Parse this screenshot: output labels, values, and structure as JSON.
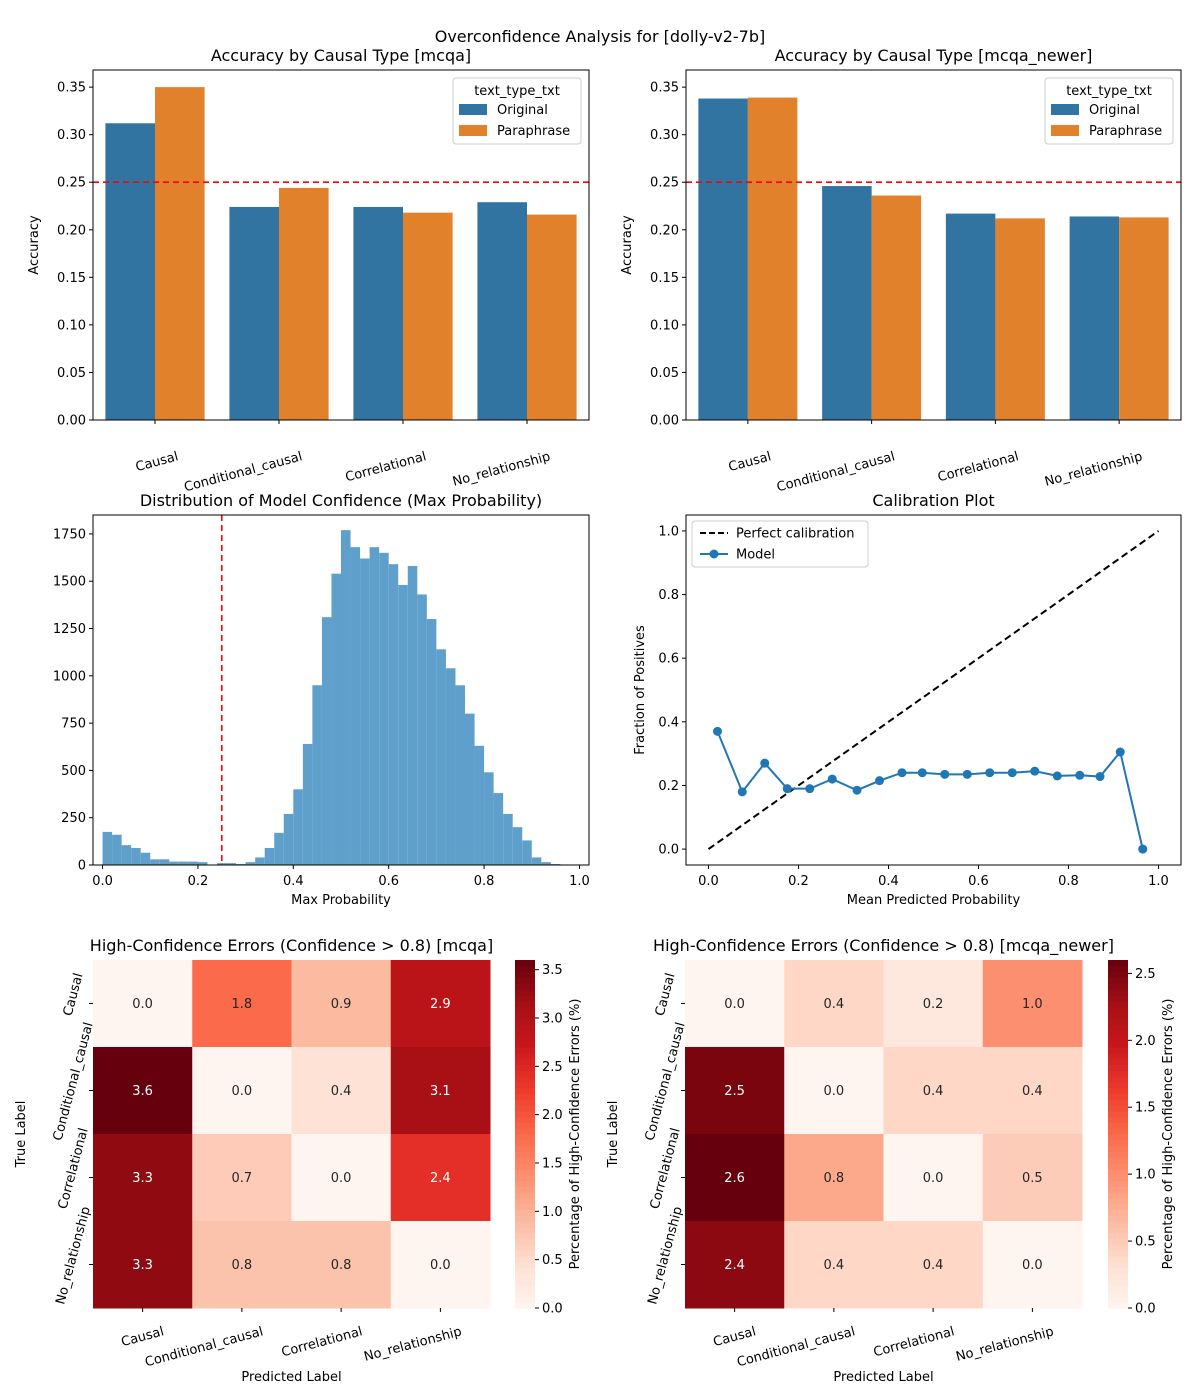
{
  "suptitle": "Overconfidence Analysis for [dolly-v2-7b]",
  "colors": {
    "original": "#3274a1",
    "paraphrase": "#e1812c",
    "hist": "#5f9fcc",
    "model_line": "#1f77b4",
    "ref_red": "#ff0000"
  },
  "chart_data": [
    {
      "id": "acc_mcqa",
      "type": "bar",
      "title": "Accuracy by Causal Type [mcqa]",
      "xlabel": "",
      "ylabel": "Accuracy",
      "categories": [
        "Causal",
        "Conditional_causal",
        "Correlational",
        "No_relationship"
      ],
      "series": [
        {
          "name": "Original",
          "values": [
            0.312,
            0.224,
            0.224,
            0.229
          ]
        },
        {
          "name": "Paraphrase",
          "values": [
            0.35,
            0.244,
            0.218,
            0.216
          ]
        }
      ],
      "legend_title": "text_type_txt",
      "ylim": [
        0,
        0.368
      ],
      "yticks": [
        "0.00",
        "0.05",
        "0.10",
        "0.15",
        "0.20",
        "0.25",
        "0.30",
        "0.35"
      ],
      "ref_line": 0.25
    },
    {
      "id": "acc_mcqa_newer",
      "type": "bar",
      "title": "Accuracy by Causal Type [mcqa_newer]",
      "xlabel": "",
      "ylabel": "Accuracy",
      "categories": [
        "Causal",
        "Conditional_causal",
        "Correlational",
        "No_relationship"
      ],
      "series": [
        {
          "name": "Original",
          "values": [
            0.338,
            0.246,
            0.217,
            0.214
          ]
        },
        {
          "name": "Paraphrase",
          "values": [
            0.339,
            0.236,
            0.212,
            0.213
          ]
        }
      ],
      "legend_title": "text_type_txt",
      "ylim": [
        0,
        0.368
      ],
      "yticks": [
        "0.00",
        "0.05",
        "0.10",
        "0.15",
        "0.20",
        "0.25",
        "0.30",
        "0.35"
      ],
      "ref_line": 0.25
    },
    {
      "id": "confidence_hist",
      "type": "histogram",
      "title": "Distribution of Model Confidence (Max Probability)",
      "xlabel": "Max Probability",
      "ylabel": "",
      "bin_width": 0.02,
      "bin_start": 0.0,
      "values": [
        175,
        160,
        105,
        90,
        65,
        30,
        30,
        18,
        18,
        18,
        15,
        0,
        10,
        10,
        5,
        15,
        40,
        90,
        170,
        270,
        400,
        640,
        950,
        1310,
        1540,
        1770,
        1680,
        1620,
        1680,
        1650,
        1590,
        1480,
        1580,
        1430,
        1300,
        1140,
        1040,
        950,
        800,
        630,
        490,
        380,
        270,
        200,
        130,
        40,
        15,
        5
      ],
      "xlim": [
        -0.02,
        1.02
      ],
      "ylim": [
        0,
        1850
      ],
      "xticks": [
        "0.0",
        "0.2",
        "0.4",
        "0.6",
        "0.8",
        "1.0"
      ],
      "yticks": [
        "0",
        "250",
        "500",
        "750",
        "1000",
        "1250",
        "1500",
        "1750"
      ],
      "ref_line": 0.25
    },
    {
      "id": "calibration",
      "type": "line",
      "title": "Calibration Plot",
      "xlabel": "Mean Predicted Probability",
      "ylabel": "Fraction of Positives",
      "series": [
        {
          "name": "Perfect calibration",
          "x": [
            0,
            1
          ],
          "y": [
            0,
            1
          ]
        },
        {
          "name": "Model",
          "x": [
            0.02,
            0.075,
            0.125,
            0.175,
            0.225,
            0.275,
            0.33,
            0.38,
            0.43,
            0.475,
            0.525,
            0.575,
            0.625,
            0.675,
            0.725,
            0.775,
            0.825,
            0.87,
            0.915,
            0.965
          ],
          "y": [
            0.37,
            0.18,
            0.27,
            0.19,
            0.19,
            0.22,
            0.185,
            0.215,
            0.24,
            0.24,
            0.235,
            0.235,
            0.24,
            0.24,
            0.245,
            0.23,
            0.232,
            0.228,
            0.305,
            0.0
          ]
        }
      ],
      "xlim": [
        -0.05,
        1.05
      ],
      "ylim": [
        -0.05,
        1.05
      ],
      "xticks": [
        "0.0",
        "0.2",
        "0.4",
        "0.6",
        "0.8",
        "1.0"
      ],
      "yticks": [
        "0.0",
        "0.2",
        "0.4",
        "0.6",
        "0.8",
        "1.0"
      ],
      "legend": "top-left"
    },
    {
      "id": "heat_mcqa",
      "type": "heatmap",
      "title": "High-Confidence Errors (Confidence > 0.8) [mcqa]",
      "xlabel": "Predicted Label",
      "ylabel": "True Label",
      "row_labels": [
        "Causal",
        "Conditional_causal",
        "Correlational",
        "No_relationship"
      ],
      "col_labels": [
        "Causal",
        "Conditional_causal",
        "Correlational",
        "No_relationship"
      ],
      "values": [
        [
          0.0,
          1.8,
          0.9,
          2.9
        ],
        [
          3.6,
          0.0,
          0.4,
          3.1
        ],
        [
          3.3,
          0.7,
          0.0,
          2.4
        ],
        [
          3.3,
          0.8,
          0.8,
          0.0
        ]
      ],
      "vmax": 3.6,
      "colorbar_label": "Percentage of High-Confidence Errors (%)",
      "colorbar_ticks": [
        "0.0",
        "0.5",
        "1.0",
        "1.5",
        "2.0",
        "2.5",
        "3.0",
        "3.5"
      ]
    },
    {
      "id": "heat_mcqa_newer",
      "type": "heatmap",
      "title": "High-Confidence Errors (Confidence > 0.8) [mcqa_newer]",
      "xlabel": "Predicted Label",
      "ylabel": "True Label",
      "row_labels": [
        "Causal",
        "Conditional_causal",
        "Correlational",
        "No_relationship"
      ],
      "col_labels": [
        "Causal",
        "Conditional_causal",
        "Correlational",
        "No_relationship"
      ],
      "values": [
        [
          0.0,
          0.4,
          0.2,
          1.0
        ],
        [
          2.5,
          0.0,
          0.4,
          0.4
        ],
        [
          2.6,
          0.8,
          0.0,
          0.5
        ],
        [
          2.4,
          0.4,
          0.4,
          0.0
        ]
      ],
      "vmax": 2.6,
      "colorbar_label": "Percentage of High-Confidence Errors (%)",
      "colorbar_ticks": [
        "0.0",
        "0.5",
        "1.0",
        "1.5",
        "2.0",
        "2.5"
      ]
    }
  ]
}
